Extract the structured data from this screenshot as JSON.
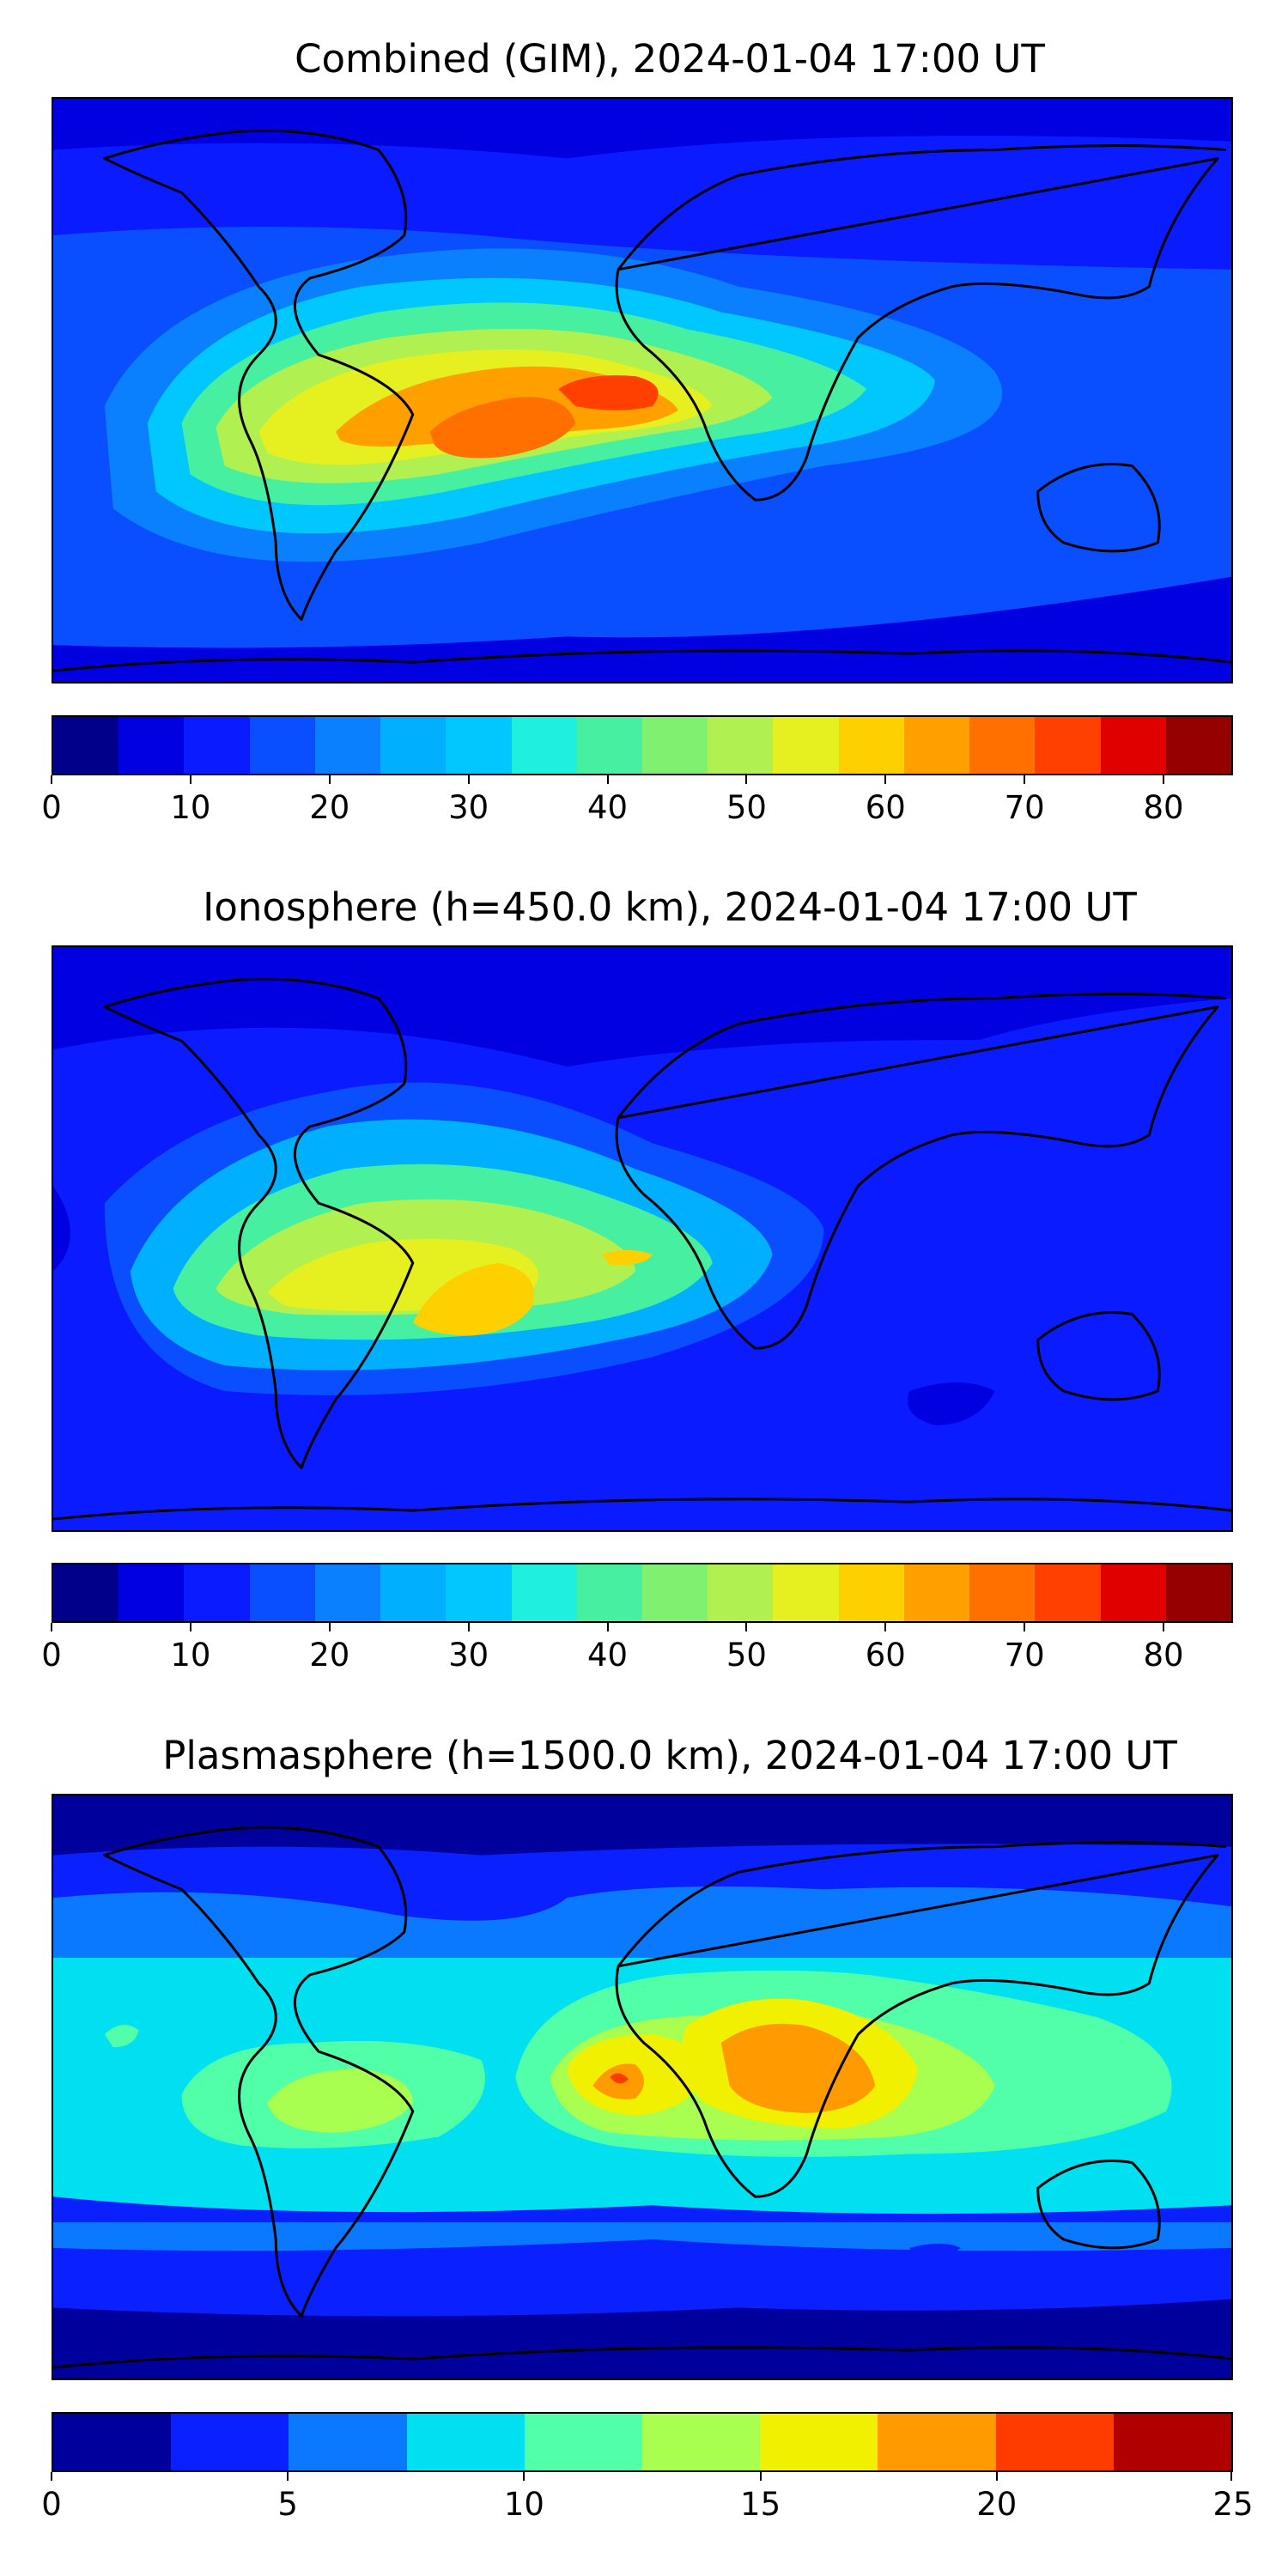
{
  "panels": [
    {
      "title": "Combined (GIM), 2024-01-04 17:00 UT",
      "colorbar": {
        "colors": [
          "#00008b",
          "#0000e0",
          "#0a1cff",
          "#0a4fff",
          "#0a80ff",
          "#00b0ff",
          "#00c8ff",
          "#1ef0e0",
          "#46f0a0",
          "#80f070",
          "#b0f050",
          "#e6f020",
          "#ffd000",
          "#ffa000",
          "#ff7000",
          "#ff4000",
          "#e00000",
          "#960000"
        ],
        "range": [
          0,
          85
        ],
        "ticks": [
          0,
          10,
          20,
          30,
          40,
          50,
          60,
          70,
          80
        ],
        "tick_labels": [
          "0",
          "10",
          "20",
          "30",
          "40",
          "50",
          "60",
          "70",
          "80"
        ]
      }
    },
    {
      "title": "Ionosphere  (h=450.0 km), 2024-01-04 17:00 UT",
      "colorbar": {
        "colors": [
          "#00008b",
          "#0000e0",
          "#0a1cff",
          "#0a4fff",
          "#0a80ff",
          "#00b0ff",
          "#00c8ff",
          "#1ef0e0",
          "#46f0a0",
          "#80f070",
          "#b0f050",
          "#e6f020",
          "#ffd000",
          "#ffa000",
          "#ff7000",
          "#ff4000",
          "#e00000",
          "#960000"
        ],
        "range": [
          0,
          85
        ],
        "ticks": [
          0,
          10,
          20,
          30,
          40,
          50,
          60,
          70,
          80
        ],
        "tick_labels": [
          "0",
          "10",
          "20",
          "30",
          "40",
          "50",
          "60",
          "70",
          "80"
        ]
      }
    },
    {
      "title": "Plasmasphere (h=1500.0 km), 2024-01-04 17:00 UT",
      "colorbar": {
        "colors": [
          "#00009c",
          "#0a20ff",
          "#0a78ff",
          "#00e0f0",
          "#50ffa8",
          "#a8ff50",
          "#f0f000",
          "#ff9a00",
          "#ff3c00",
          "#b00000"
        ],
        "range": [
          0,
          25
        ],
        "ticks": [
          0,
          5,
          10,
          15,
          20,
          25
        ],
        "tick_labels": [
          "0",
          "5",
          "10",
          "15",
          "20",
          "25"
        ]
      }
    }
  ]
}
